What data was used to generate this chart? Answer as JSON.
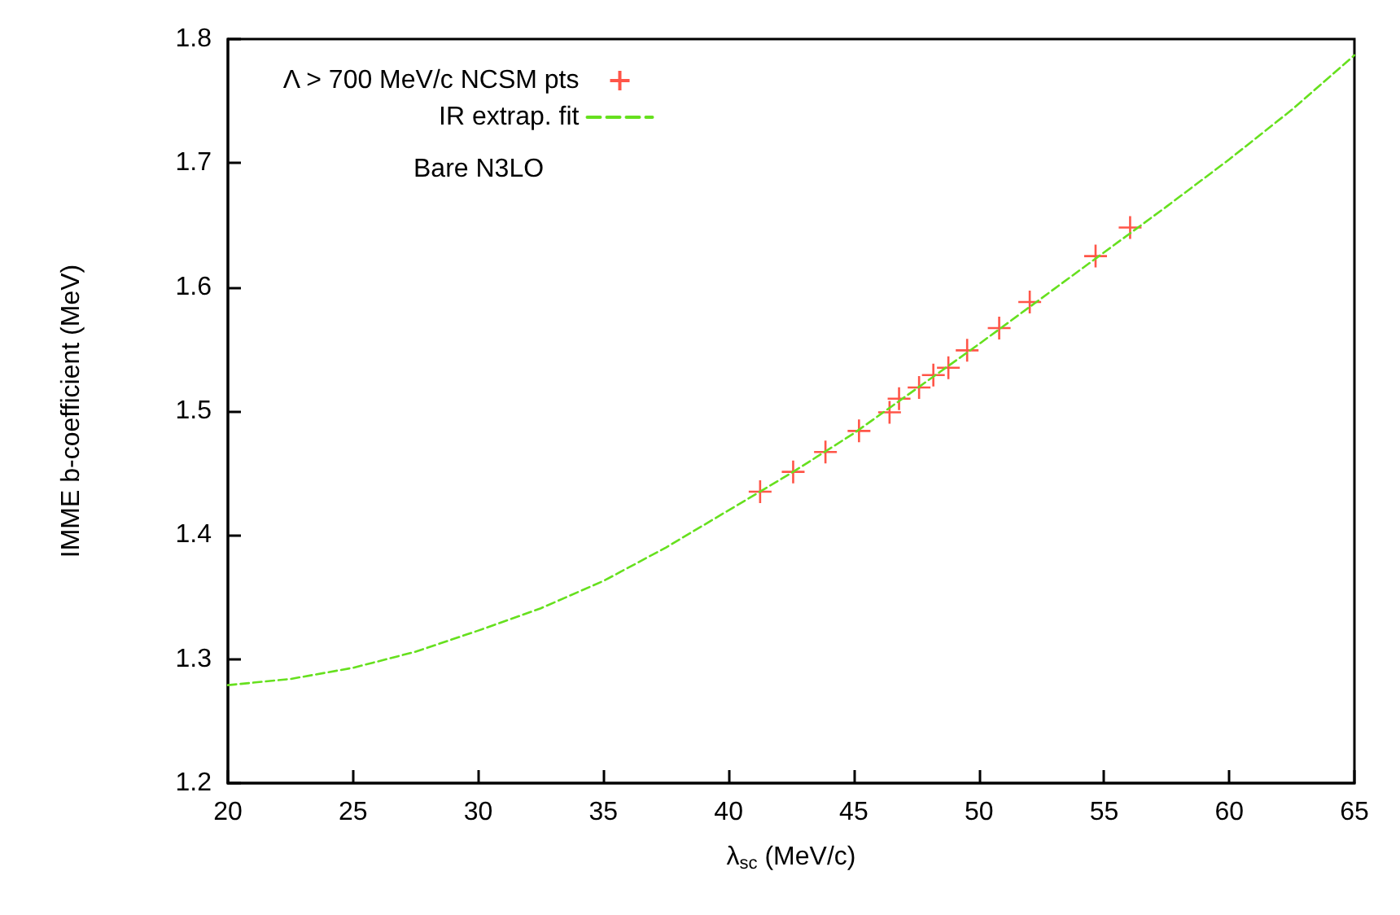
{
  "chart_data": {
    "type": "scatter",
    "xlabel": "λ$_{sc}$ (MeV/c)",
    "ylabel": "IMME b-coefficient (MeV)",
    "xlim": [
      20,
      65
    ],
    "ylim": [
      1.2,
      1.8
    ],
    "xticks": [
      20,
      25,
      30,
      35,
      40,
      45,
      50,
      55,
      60,
      65
    ],
    "yticks": [
      1.2,
      1.3,
      1.4,
      1.5,
      1.6,
      1.7,
      1.8
    ],
    "grid": false,
    "legend": "top left",
    "annotations": [
      "Bare N3LO"
    ],
    "series": [
      {
        "name": "Λ > 700 MeV/c NCSM pts",
        "color": "#ff2a1a",
        "marker": "cross",
        "x": [
          41.26,
          42.58,
          43.87,
          45.21,
          46.43,
          46.81,
          47.61,
          48.18,
          48.78,
          49.53,
          50.81,
          52.03,
          54.66,
          56.04
        ],
        "values": [
          1.435,
          1.451,
          1.467,
          1.484,
          1.499,
          1.51,
          1.519,
          1.529,
          1.535,
          1.549,
          1.567,
          1.588,
          1.625,
          1.648
        ]
      },
      {
        "name": "IR extrap. fit",
        "type": "line",
        "color": "#66e01e",
        "marker": "none",
        "line_style": "dashed",
        "x": [
          20,
          22.5,
          25,
          27.5,
          30,
          32.5,
          35,
          37.5,
          40,
          42.5,
          45,
          47.5,
          50,
          52.5,
          55,
          57.5,
          60,
          62.5,
          65
        ],
        "values": [
          1.279,
          1.284,
          1.293,
          1.306,
          1.323,
          1.341,
          1.363,
          1.39,
          1.42,
          1.45,
          1.482,
          1.518,
          1.554,
          1.591,
          1.628,
          1.665,
          1.703,
          1.743,
          1.787
        ]
      }
    ]
  }
}
